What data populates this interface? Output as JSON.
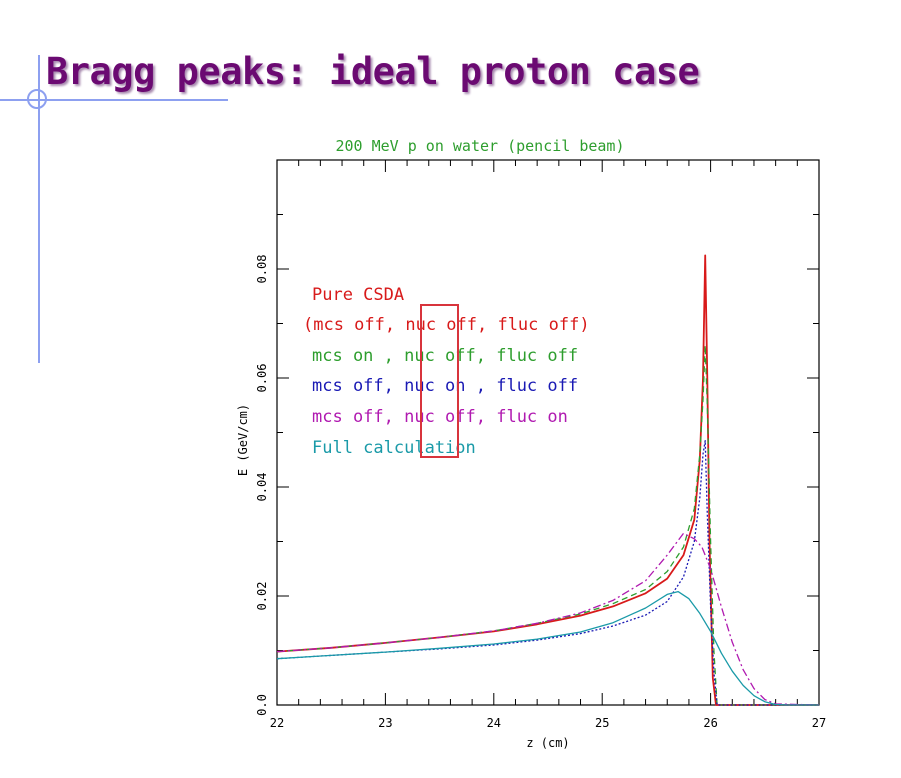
{
  "slide": {
    "title": "Bragg peaks: ideal proton case"
  },
  "colors": {
    "title": "#6b0a72",
    "deco": "#8da0f0",
    "highlight_box": "#d8343c"
  },
  "chart_data": {
    "type": "line",
    "title": "200 MeV p on water (pencil beam)",
    "xlabel": "z (cm)",
    "ylabel": "E (GeV/cm)",
    "xlim": [
      22,
      27
    ],
    "ylim": [
      0,
      0.1
    ],
    "xticks": [
      "22",
      "23",
      "24",
      "25",
      "26",
      "27"
    ],
    "yticks": [
      "0.0",
      "0.02",
      "0.04",
      "0.06",
      "0.08"
    ],
    "grid": false,
    "legend_position": "top-left",
    "legend": [
      {
        "text": "Pure CSDA",
        "color": "#d81a1a"
      },
      {
        "text": "(mcs off, nuc off, fluc off)",
        "color": "#d81a1a"
      },
      {
        "text": "mcs on , nuc off, fluc off",
        "color": "#2e9e2e"
      },
      {
        "text": "mcs off, nuc on , fluc off",
        "color": "#1a1ab4"
      },
      {
        "text": "mcs off, nuc off, fluc on",
        "color": "#b01ab0"
      },
      {
        "text": "Full calculation",
        "color": "#1a9aa8"
      }
    ],
    "series": [
      {
        "color": "#d81a1a",
        "dash": "",
        "x": [
          22,
          22.5,
          23,
          23.5,
          24,
          24.4,
          24.8,
          25.1,
          25.4,
          25.6,
          25.75,
          25.85,
          25.9,
          25.93,
          25.95,
          25.97,
          25.99,
          26.02,
          26.05,
          26.2,
          26.6,
          27
        ],
        "y": [
          0.0098,
          0.0105,
          0.0114,
          0.0124,
          0.0135,
          0.0148,
          0.0164,
          0.0181,
          0.0205,
          0.0232,
          0.0275,
          0.034,
          0.045,
          0.06,
          0.0825,
          0.06,
          0.03,
          0.005,
          0,
          0,
          0,
          0
        ]
      },
      {
        "color": "#2e9e2e",
        "dash": "6,4",
        "x": [
          22,
          22.5,
          23,
          23.5,
          24,
          24.4,
          24.8,
          25.1,
          25.4,
          25.6,
          25.75,
          25.85,
          25.9,
          25.93,
          25.95,
          25.97,
          26,
          26.03,
          26.06,
          26.2,
          26.6,
          27
        ],
        "y": [
          0.0098,
          0.0105,
          0.0114,
          0.0124,
          0.0136,
          0.015,
          0.0167,
          0.0186,
          0.0212,
          0.0245,
          0.029,
          0.036,
          0.046,
          0.056,
          0.066,
          0.055,
          0.03,
          0.01,
          0,
          0,
          0,
          0
        ]
      },
      {
        "color": "#1a1ab4",
        "dash": "2,2",
        "x": [
          22,
          22.5,
          23,
          23.5,
          24,
          24.4,
          24.8,
          25.1,
          25.4,
          25.6,
          25.75,
          25.85,
          25.9,
          25.93,
          25.95,
          25.97,
          26,
          26.03,
          26.06,
          26.2,
          26.6,
          27
        ],
        "y": [
          0.0085,
          0.0091,
          0.0097,
          0.0103,
          0.011,
          0.0119,
          0.0131,
          0.0145,
          0.0165,
          0.019,
          0.0235,
          0.03,
          0.038,
          0.046,
          0.0485,
          0.035,
          0.018,
          0.006,
          0,
          0,
          0,
          0
        ]
      },
      {
        "color": "#b01ab0",
        "dash": "8,3,2,3",
        "x": [
          22,
          22.5,
          23,
          23.5,
          24,
          24.4,
          24.8,
          25.1,
          25.4,
          25.6,
          25.75,
          25.85,
          25.92,
          26,
          26.05,
          26.1,
          26.2,
          26.3,
          26.4,
          26.5,
          26.6,
          27
        ],
        "y": [
          0.0098,
          0.0105,
          0.0114,
          0.0124,
          0.0136,
          0.015,
          0.0169,
          0.0192,
          0.0228,
          0.0275,
          0.0315,
          0.0305,
          0.029,
          0.025,
          0.0215,
          0.018,
          0.0115,
          0.0065,
          0.003,
          0.001,
          0.0002,
          0
        ]
      },
      {
        "color": "#1a9aa8",
        "dash": "",
        "x": [
          22,
          22.5,
          23,
          23.5,
          24,
          24.4,
          24.8,
          25.1,
          25.4,
          25.6,
          25.7,
          25.8,
          25.9,
          26,
          26.1,
          26.2,
          26.3,
          26.4,
          26.5,
          26.6,
          26.7,
          27
        ],
        "y": [
          0.0085,
          0.0091,
          0.0097,
          0.0104,
          0.0112,
          0.0121,
          0.0134,
          0.0151,
          0.0178,
          0.0203,
          0.0208,
          0.0195,
          0.0168,
          0.0135,
          0.0095,
          0.0062,
          0.0036,
          0.0017,
          0.0006,
          0.0001,
          0,
          0
        ]
      }
    ]
  }
}
